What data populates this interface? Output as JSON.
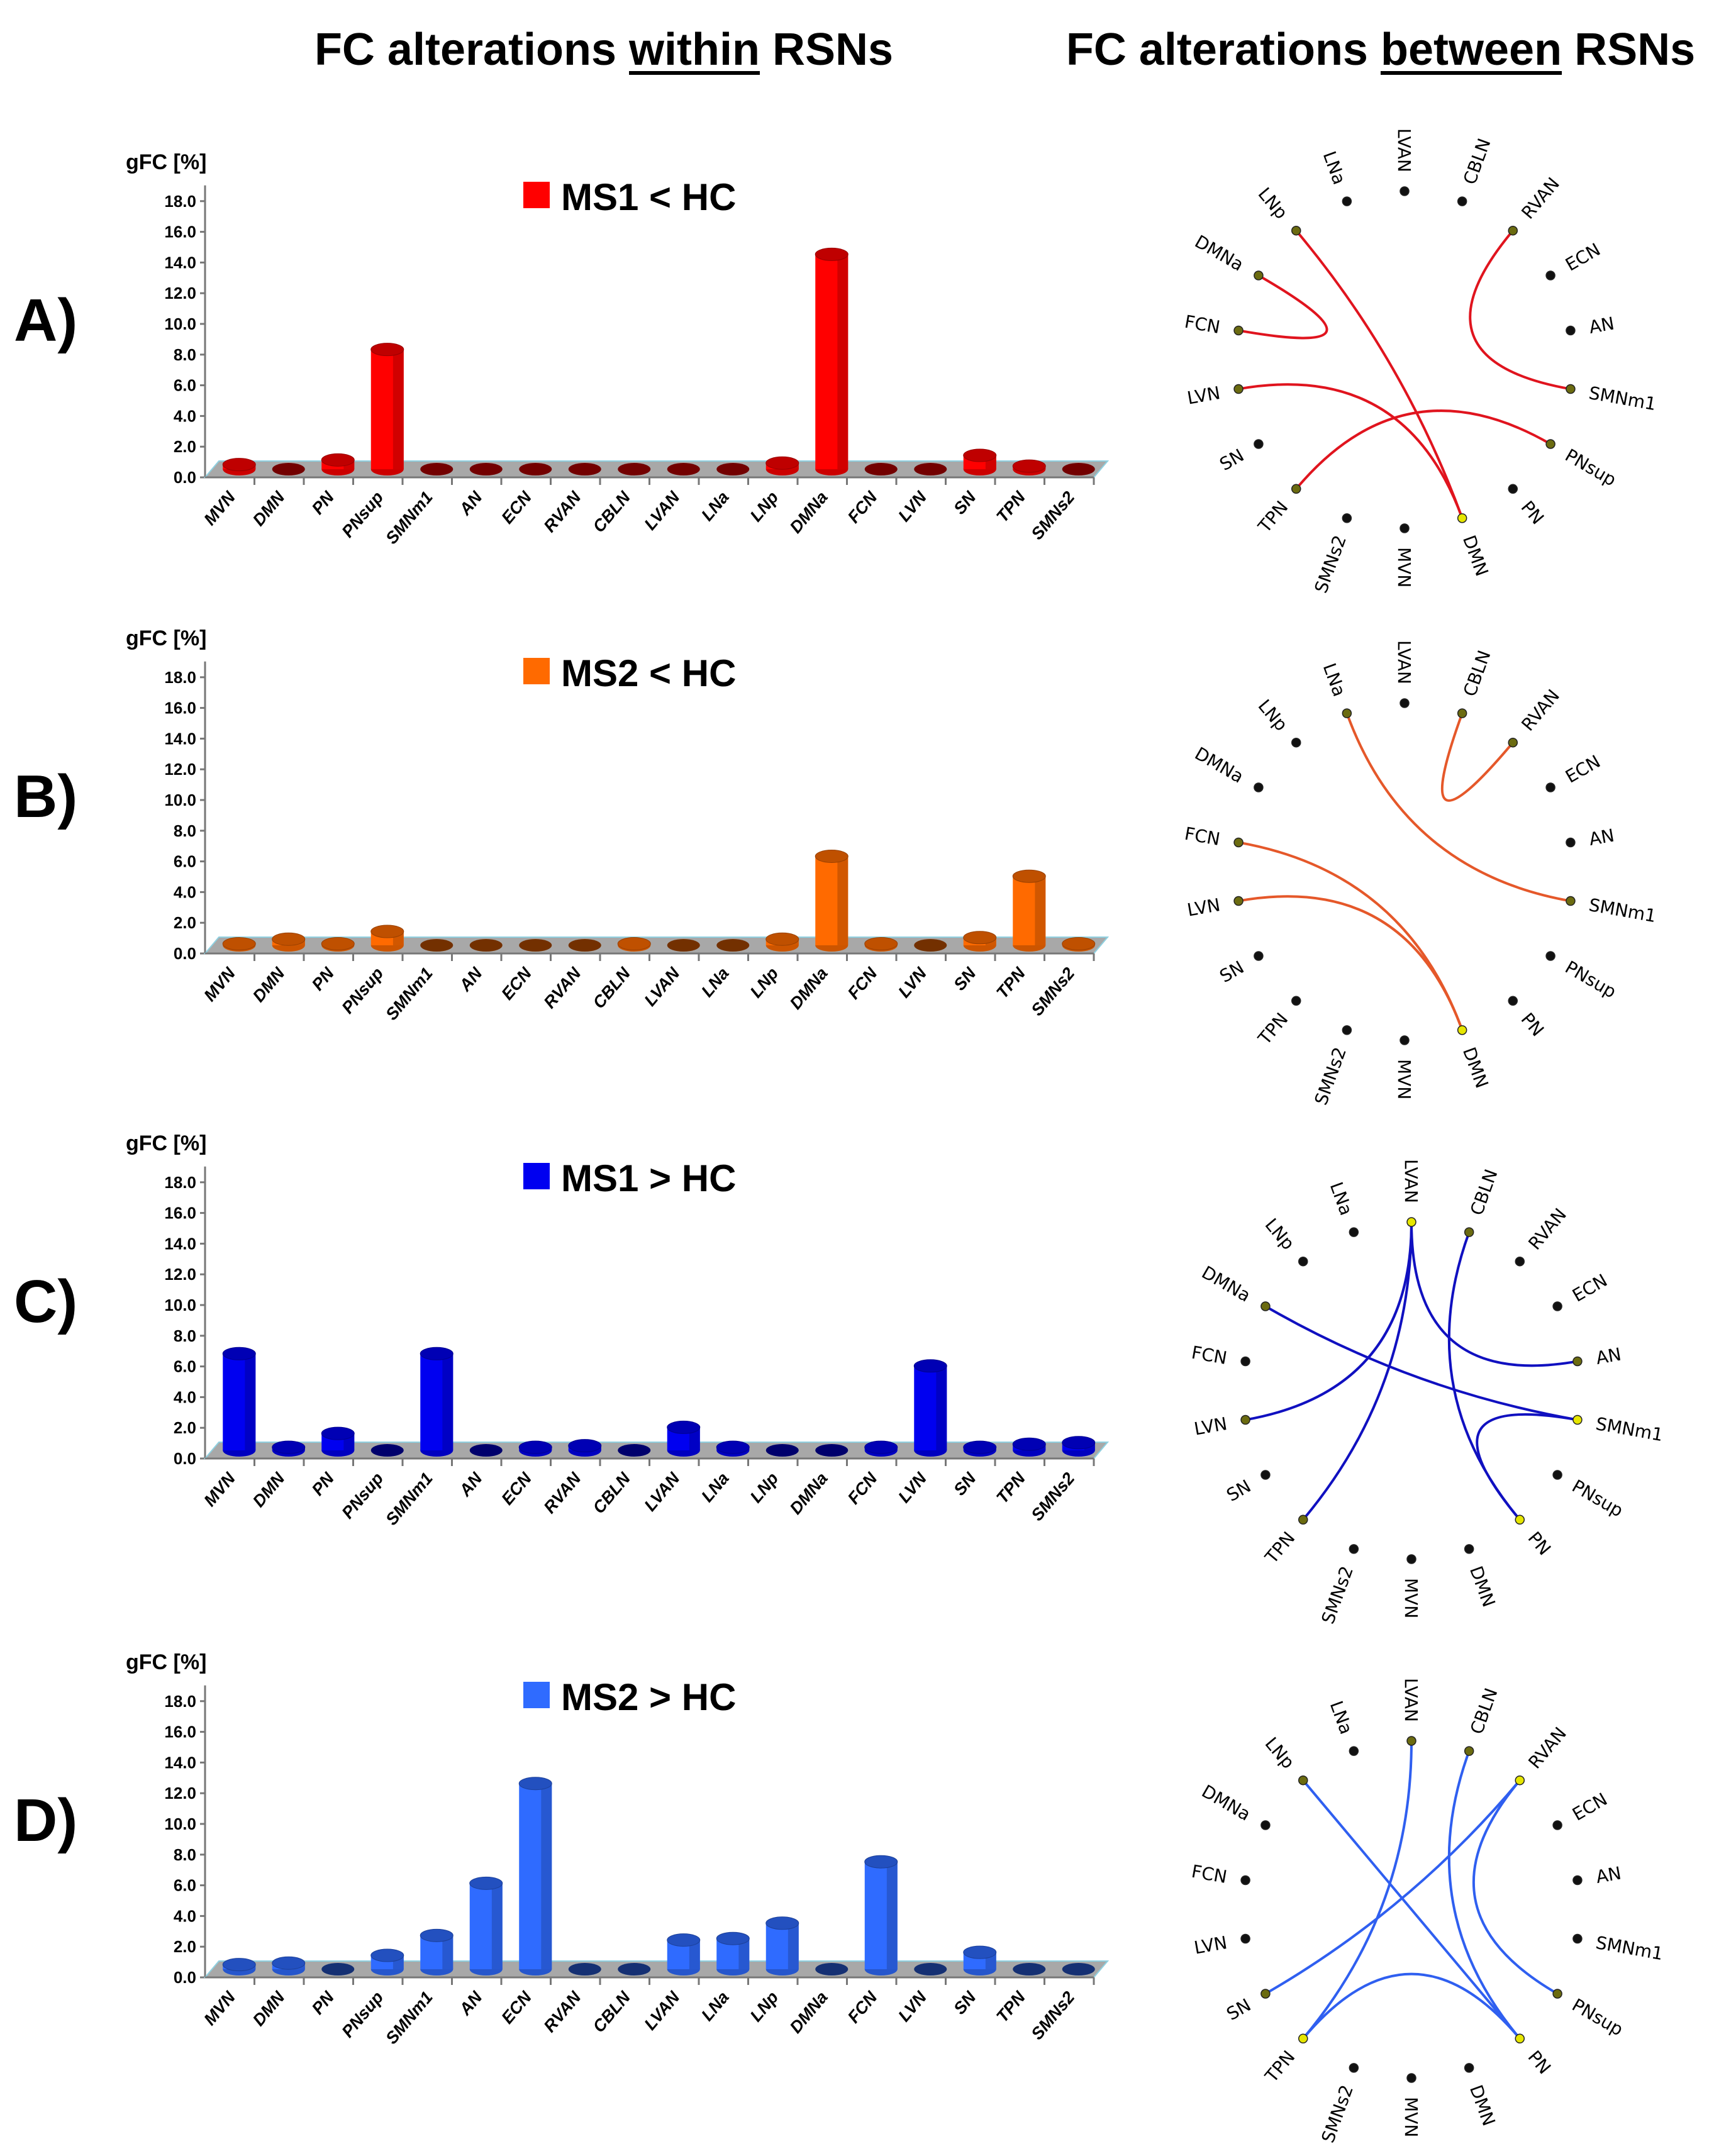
{
  "headers": {
    "within": {
      "prefix": "FC alterations ",
      "underlined": "within",
      "suffix": " RSNs"
    },
    "between": {
      "prefix": "FC alterations ",
      "underlined": "between",
      "suffix": " RSNs"
    }
  },
  "panels": [
    {
      "letter": "A)",
      "bar_color": "#ff0000",
      "edge_color": "#e0141e"
    },
    {
      "letter": "B)",
      "bar_color": "#ff6a00",
      "edge_color": "#e5582a"
    },
    {
      "letter": "C)",
      "bar_color": "#0000f0",
      "edge_color": "#1010c0"
    },
    {
      "letter": "D)",
      "bar_color": "#2f6bff",
      "edge_color": "#2f5ff0"
    }
  ],
  "chart_data": [
    {
      "type": "bar",
      "legend": "MS1 < HC",
      "ylabel": "gFC [%]",
      "ylim": [
        0,
        18
      ],
      "yticks": [
        "0.0",
        "2.0",
        "4.0",
        "6.0",
        "8.0",
        "10.0",
        "12.0",
        "14.0",
        "16.0",
        "18.0"
      ],
      "categories": [
        "MVN",
        "DMN",
        "PN",
        "PNsup",
        "SMNm1",
        "AN",
        "ECN",
        "RVAN",
        "CBLN",
        "LVAN",
        "LNa",
        "LNp",
        "DMNa",
        "FCN",
        "LVN",
        "SN",
        "TPN",
        "SMNs2"
      ],
      "values": [
        0.3,
        0,
        0.6,
        7.8,
        0,
        0,
        0,
        0,
        0,
        0,
        0,
        0.4,
        14.0,
        0,
        0,
        0.9,
        0.2,
        0
      ]
    },
    {
      "type": "bar",
      "legend": "MS2 < HC",
      "ylabel": "gFC [%]",
      "ylim": [
        0,
        18
      ],
      "yticks": [
        "0.0",
        "2.0",
        "4.0",
        "6.0",
        "8.0",
        "10.0",
        "12.0",
        "14.0",
        "16.0",
        "18.0"
      ],
      "categories": [
        "MVN",
        "DMN",
        "PN",
        "PNsup",
        "SMNm1",
        "AN",
        "ECN",
        "RVAN",
        "CBLN",
        "LVAN",
        "LNa",
        "LNp",
        "DMNa",
        "FCN",
        "LVN",
        "SN",
        "TPN",
        "SMNs2"
      ],
      "values": [
        0.1,
        0.4,
        0.1,
        0.9,
        0,
        0,
        0,
        0,
        0.1,
        0,
        0,
        0.4,
        5.8,
        0.1,
        0,
        0.5,
        4.5,
        0.1
      ]
    },
    {
      "type": "bar",
      "legend": "MS1 > HC",
      "ylabel": "gFC [%]",
      "ylim": [
        0,
        18
      ],
      "yticks": [
        "0.0",
        "2.0",
        "4.0",
        "6.0",
        "8.0",
        "10.0",
        "12.0",
        "14.0",
        "16.0",
        "18.0"
      ],
      "categories": [
        "MVN",
        "DMN",
        "PN",
        "PNsup",
        "SMNm1",
        "AN",
        "ECN",
        "RVAN",
        "CBLN",
        "LVAN",
        "LNa",
        "LNp",
        "DMNa",
        "FCN",
        "LVN",
        "SN",
        "TPN",
        "SMNs2"
      ],
      "values": [
        6.3,
        0.2,
        1.1,
        0,
        6.3,
        0,
        0.2,
        0.3,
        0,
        1.5,
        0.2,
        0,
        0,
        0.2,
        5.5,
        0.2,
        0.4,
        0.5
      ]
    },
    {
      "type": "bar",
      "legend": "MS2 > HC",
      "ylabel": "gFC [%]",
      "ylim": [
        0,
        18
      ],
      "yticks": [
        "0.0",
        "2.0",
        "4.0",
        "6.0",
        "8.0",
        "10.0",
        "12.0",
        "14.0",
        "16.0",
        "18.0"
      ],
      "categories": [
        "MVN",
        "DMN",
        "PN",
        "PNsup",
        "SMNm1",
        "AN",
        "ECN",
        "RVAN",
        "CBLN",
        "LVAN",
        "LNa",
        "LNp",
        "DMNa",
        "FCN",
        "LVN",
        "SN",
        "TPN",
        "SMNs2"
      ],
      "values": [
        0.3,
        0.4,
        0,
        0.9,
        2.2,
        5.6,
        12.1,
        0,
        0,
        1.9,
        2.0,
        3.0,
        0,
        7.0,
        0,
        1.1,
        0,
        0
      ]
    }
  ],
  "circle_nodes": [
    "LVAN",
    "CBLN",
    "RVAN",
    "ECN",
    "AN",
    "SMNm1",
    "PNsup",
    "PN",
    "DMN",
    "MVN",
    "SMNs2",
    "TPN",
    "SN",
    "LVN",
    "FCN",
    "DMNa",
    "LNp",
    "LNa"
  ],
  "connectivity": [
    {
      "edges": [
        [
          "LNp",
          "DMN"
        ],
        [
          "DMNa",
          "FCN"
        ],
        [
          "LVN",
          "DMN"
        ],
        [
          "TPN",
          "PNsup"
        ],
        [
          "RVAN",
          "SMNm1"
        ]
      ]
    },
    {
      "edges": [
        [
          "LNa",
          "SMNm1"
        ],
        [
          "CBLN",
          "RVAN"
        ],
        [
          "FCN",
          "DMN"
        ],
        [
          "LVN",
          "DMN"
        ]
      ]
    },
    {
      "edges": [
        [
          "LVAN",
          "LVN"
        ],
        [
          "LVAN",
          "TPN"
        ],
        [
          "LVAN",
          "AN"
        ],
        [
          "DMNa",
          "SMNm1"
        ],
        [
          "CBLN",
          "PN"
        ],
        [
          "SMNm1",
          "PN"
        ]
      ]
    },
    {
      "edges": [
        [
          "LVAN",
          "TPN"
        ],
        [
          "CBLN",
          "PN"
        ],
        [
          "LNp",
          "PN"
        ],
        [
          "RVAN",
          "SN"
        ],
        [
          "RVAN",
          "PNsup"
        ],
        [
          "TPN",
          "PN"
        ]
      ]
    }
  ]
}
